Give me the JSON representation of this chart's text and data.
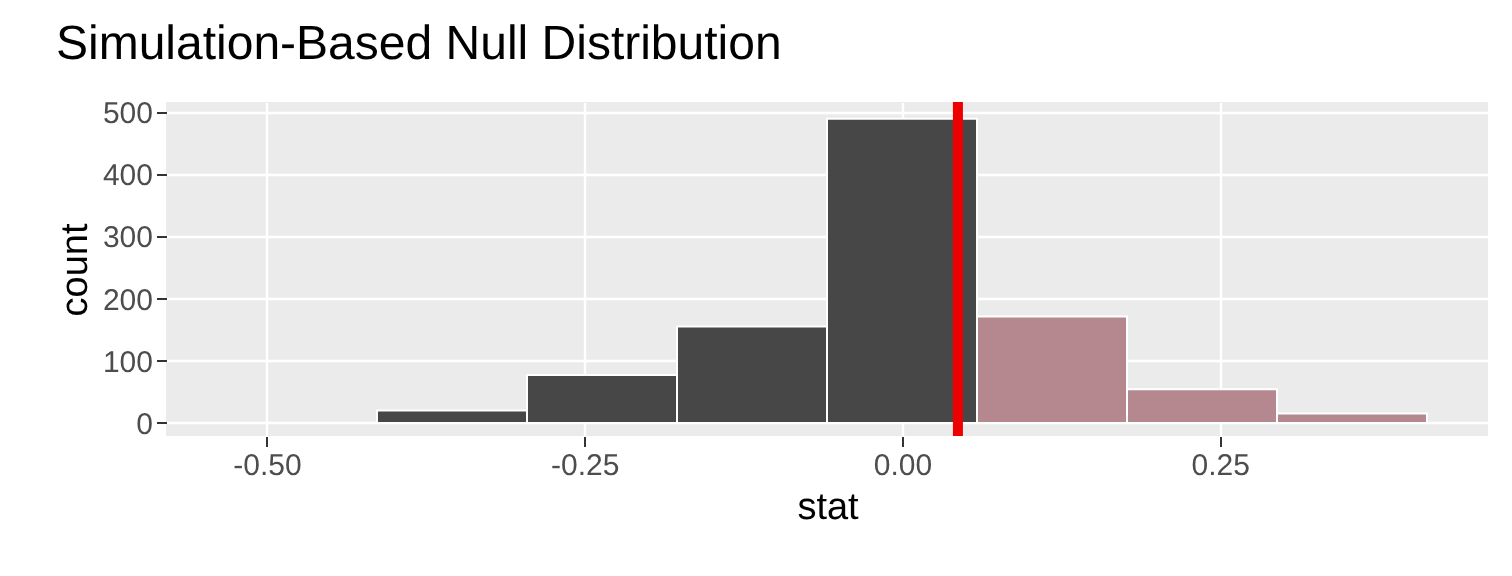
{
  "chart_data": {
    "type": "histogram",
    "title": "Simulation-Based Null Distribution",
    "xlabel": "stat",
    "ylabel": "count",
    "bins": [
      -0.413,
      -0.295,
      -0.177,
      -0.059,
      0.059,
      0.177,
      0.295,
      0.413
    ],
    "values": [
      20,
      77,
      155,
      489,
      171,
      54,
      15
    ],
    "colors": [
      "#474747",
      "#474747",
      "#474747",
      "#474747",
      "#b5878f",
      "#b5878f",
      "#b5878f"
    ],
    "xlim": [
      -0.579,
      0.461
    ],
    "ylim": [
      -21,
      516
    ],
    "xticks": [
      {
        "value": -0.5,
        "label": "-0.50"
      },
      {
        "value": -0.25,
        "label": "-0.25"
      },
      {
        "value": 0,
        "label": "0.00"
      },
      {
        "value": 0.25,
        "label": "0.25"
      }
    ],
    "yticks": [
      0,
      100,
      200,
      300,
      400,
      500
    ],
    "ref_lines": [
      {
        "axis": "x",
        "value": 0.044,
        "color": "#ee0000"
      }
    ],
    "grid": true
  }
}
